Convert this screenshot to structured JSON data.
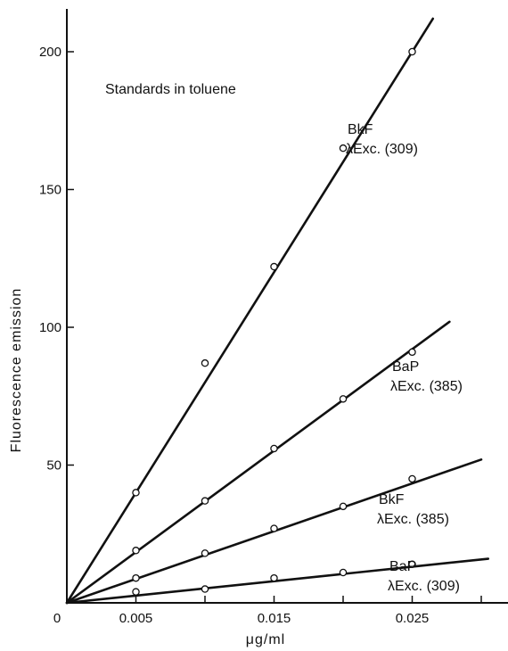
{
  "chart_data": {
    "type": "scatter",
    "title": "Standards in toluene",
    "xlabel": "μg/ml",
    "ylabel": "Fluorescence   emission",
    "xlim": [
      0,
      0.031
    ],
    "ylim": [
      0,
      215
    ],
    "origin_label": "0",
    "x_ticks": [
      0.005,
      0.01,
      0.015,
      0.02,
      0.025,
      0.03
    ],
    "x_tick_labels": [
      {
        "value": 0.005,
        "label": "0.005"
      },
      {
        "value": 0.015,
        "label": "0.015"
      },
      {
        "value": 0.025,
        "label": "0.025"
      }
    ],
    "y_ticks": [
      50,
      100,
      150,
      200
    ],
    "y_tick_labels": [
      "50",
      "100",
      "150",
      "200"
    ],
    "grid": false,
    "series": [
      {
        "name": "BkF λExc.(309)",
        "label_lines": [
          "BkF",
          "λExc. (309)"
        ],
        "points": [
          [
            0.005,
            40
          ],
          [
            0.01,
            87
          ],
          [
            0.015,
            122
          ],
          [
            0.02,
            165
          ],
          [
            0.025,
            200
          ]
        ],
        "fit_end": [
          0.0265,
          212
        ]
      },
      {
        "name": "BaP λExc.(385)",
        "label_lines": [
          "BaP",
          "λExc. (385)"
        ],
        "points": [
          [
            0.005,
            19
          ],
          [
            0.01,
            37
          ],
          [
            0.015,
            56
          ],
          [
            0.02,
            74
          ],
          [
            0.025,
            91
          ]
        ],
        "fit_end": [
          0.0277,
          102
        ]
      },
      {
        "name": "BkF λExc.(385)",
        "label_lines": [
          "BkF",
          "λExc. (385)"
        ],
        "points": [
          [
            0.005,
            9
          ],
          [
            0.01,
            18
          ],
          [
            0.015,
            27
          ],
          [
            0.02,
            35
          ],
          [
            0.025,
            45
          ]
        ],
        "fit_end": [
          0.03,
          52
        ]
      },
      {
        "name": "BaP λExc.(309)",
        "label_lines": [
          "BaP",
          "λExc. (309)"
        ],
        "points": [
          [
            0.005,
            4
          ],
          [
            0.01,
            5
          ],
          [
            0.015,
            9
          ],
          [
            0.02,
            11
          ],
          [
            0.025,
            14
          ]
        ],
        "fit_end": [
          0.0305,
          16
        ]
      }
    ]
  }
}
